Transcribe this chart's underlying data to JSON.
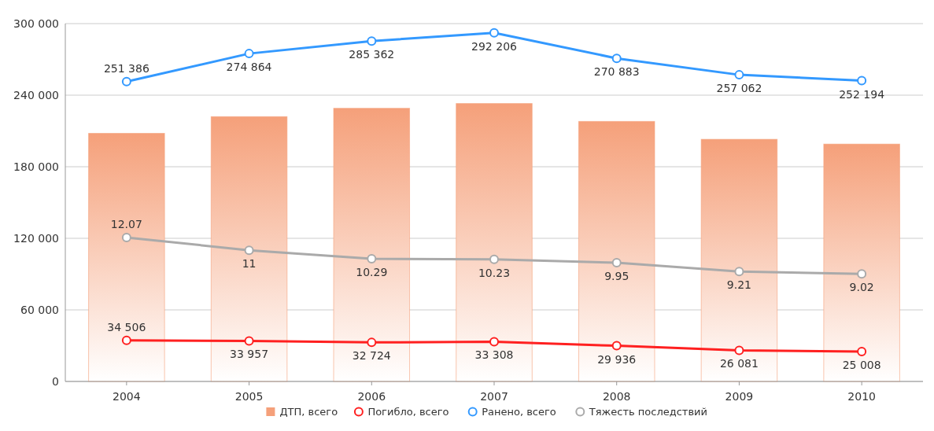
{
  "chart_data": {
    "type": "bar",
    "categories": [
      "2004",
      "2005",
      "2006",
      "2007",
      "2008",
      "2009",
      "2010"
    ],
    "ylim": [
      0,
      300000
    ],
    "yticks": [
      {
        "value": 0,
        "label": "0"
      },
      {
        "value": 60000,
        "label": "60 000"
      },
      {
        "value": 120000,
        "label": "120 000"
      },
      {
        "value": 180000,
        "label": "180 000"
      },
      {
        "value": 240000,
        "label": "240 000"
      },
      {
        "value": 300000,
        "label": "300 000"
      }
    ],
    "y2lim": [
      0,
      30
    ],
    "grid": "y",
    "legend": "bottom",
    "marker": "circle",
    "series": [
      {
        "name": "ДТП, всего",
        "color": "#f5a07a",
        "values": [
          208000,
          222000,
          229000,
          233000,
          218000,
          203000,
          199000
        ]
      },
      {
        "name": "Погибло, всего",
        "type": "line",
        "color": "#ff2020",
        "values": [
          34506,
          33957,
          32724,
          33308,
          29936,
          26081,
          25008
        ],
        "value_labels": [
          "34 506",
          "33 957",
          "32 724",
          "33 308",
          "29 936",
          "26 081",
          "25 008"
        ]
      },
      {
        "name": "Ранено, всего",
        "type": "line",
        "color": "#3399ff",
        "values": [
          251386,
          274864,
          285362,
          292206,
          270883,
          257062,
          252194
        ],
        "value_labels": [
          "251 386",
          "274 864",
          "285 362",
          "292 206",
          "270 883",
          "257 062",
          "252 194"
        ]
      },
      {
        "name": "Тяжесть последствий",
        "type": "line",
        "axis": "y2",
        "color": "#aaaaaa",
        "values": [
          12.07,
          11,
          10.29,
          10.23,
          9.95,
          9.21,
          9.02
        ],
        "value_labels": [
          "12.07",
          "11",
          "10.29",
          "10.23",
          "9.95",
          "9.21",
          "9.02"
        ]
      }
    ]
  }
}
